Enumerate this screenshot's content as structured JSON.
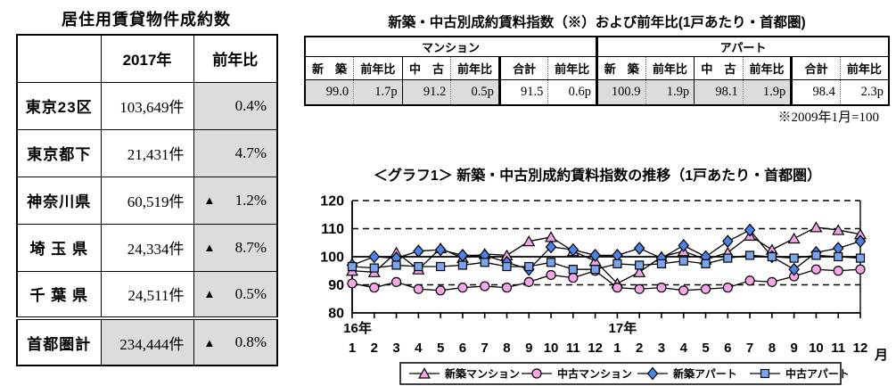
{
  "left_table": {
    "title": "居住用賃貸物件成約数",
    "col_headers": [
      "",
      "2017年",
      "前年比"
    ],
    "rows": [
      {
        "label": "東京23区",
        "count": "103,649件",
        "sign": "",
        "yoy": "0.4%"
      },
      {
        "label": "東京都下",
        "count": "21,431件",
        "sign": "",
        "yoy": "4.7%"
      },
      {
        "label": "神奈川県",
        "count": "60,519件",
        "sign": "▲",
        "yoy": "1.2%"
      },
      {
        "label": "埼 玉 県",
        "count": "24,334件",
        "sign": "▲",
        "yoy": "8.7%"
      },
      {
        "label": "千 葉 県",
        "count": "24,511件",
        "sign": "▲",
        "yoy": "0.5%"
      },
      {
        "label": "首都圏計",
        "count": "234,444件",
        "sign": "▲",
        "yoy": "0.8%"
      }
    ]
  },
  "index_table": {
    "title": "新築・中古別成約賃料指数（※）および前年比(1戸あたり・首都圏)",
    "groups": [
      "マンション",
      "アパート"
    ],
    "sub_headers": [
      "新　築",
      "前年比",
      "中　古",
      "前年比",
      "合計",
      "前年比",
      "新　築",
      "前年比",
      "中　古",
      "前年比",
      "合計",
      "前年比"
    ],
    "values": [
      "99.0",
      "1.7p",
      "91.2",
      "0.5p",
      "91.5",
      "0.6p",
      "100.9",
      "1.9p",
      "98.1",
      "1.9p",
      "98.4",
      "2.3p"
    ],
    "note": "※2009年1月=100",
    "shaded_color": "#dcdcdc"
  },
  "chart_data": {
    "type": "line",
    "title": "＜グラフ1＞ 新築・中古別成約賃料指数の推移（1戸あたり・首都圏）",
    "x_year_labels": [
      {
        "label": "16年",
        "at_month_index": 0
      },
      {
        "label": "17年",
        "at_month_index": 12
      }
    ],
    "x_months": [
      1,
      2,
      3,
      4,
      5,
      6,
      7,
      8,
      9,
      10,
      11,
      12,
      1,
      2,
      3,
      4,
      5,
      6,
      7,
      8,
      9,
      10,
      11,
      12
    ],
    "x_unit": "月",
    "ylim": [
      80,
      120
    ],
    "yticks": [
      80,
      90,
      100,
      110,
      120
    ],
    "gridlines_dashed": [
      90,
      110,
      120
    ],
    "gridlines_solid": [
      100
    ],
    "base_note": "2009年1月=100",
    "legend_position": "bottom",
    "series": [
      {
        "name": "新築マンション",
        "id": "new-mansion",
        "marker": "triangle",
        "color": "#f0a4e6",
        "values": [
          95,
          94.5,
          101.5,
          95.5,
          103,
          99.5,
          101,
          100.5,
          105.5,
          107,
          102,
          98.5,
          90.5,
          94.5,
          100,
          102,
          99,
          101.5,
          107.5,
          102.5,
          106.5,
          110.5,
          109.5,
          108
        ]
      },
      {
        "name": "中古マンション",
        "id": "used-mansion",
        "marker": "circle",
        "color": "#f8a6e8",
        "values": [
          90.5,
          89,
          91,
          88.5,
          88,
          89,
          89.5,
          89,
          91,
          93.5,
          92.5,
          95,
          89,
          88.5,
          89,
          88,
          88.5,
          89,
          91.5,
          91,
          93,
          95.5,
          95,
          95.5
        ]
      },
      {
        "name": "新築アパート",
        "id": "new-apart",
        "marker": "diamond",
        "color": "#4d82e8",
        "values": [
          97,
          100,
          99.5,
          102,
          102.5,
          100.5,
          100.5,
          98,
          95.5,
          103.5,
          102.5,
          100.5,
          100.5,
          103,
          99.5,
          104,
          100,
          105.5,
          109.5,
          100,
          95.5,
          101.5,
          103,
          105.5
        ]
      },
      {
        "name": "中古アパート",
        "id": "used-apart",
        "marker": "square",
        "color": "#7aa4ec",
        "values": [
          96.5,
          96,
          97,
          96.5,
          96.5,
          97,
          98,
          96.5,
          96.5,
          98,
          95.5,
          95.5,
          97.5,
          97,
          97.5,
          98.5,
          97.5,
          99.5,
          100.5,
          100,
          99.5,
          100.5,
          100,
          99.5
        ]
      }
    ]
  }
}
